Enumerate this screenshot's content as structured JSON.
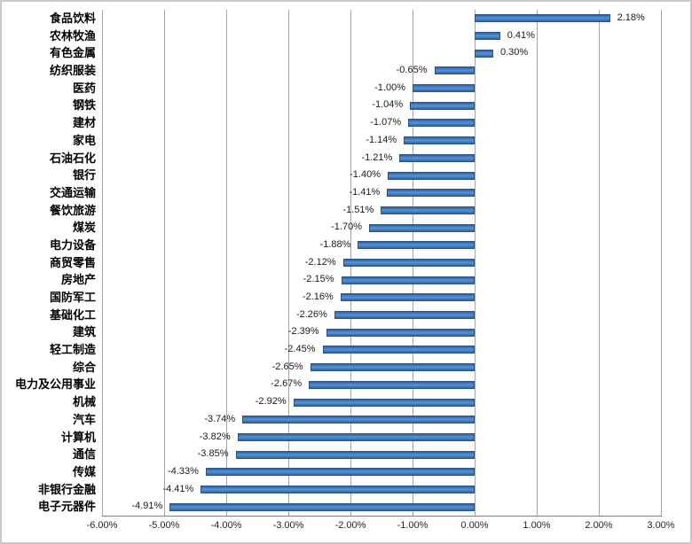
{
  "chart_data": {
    "type": "bar",
    "orientation": "horizontal",
    "title": "",
    "xlabel": "",
    "ylabel": "",
    "xlim": [
      -6,
      3
    ],
    "grid": "vertical",
    "legend": "none",
    "categories": [
      "食品饮料",
      "农林牧渔",
      "有色金属",
      "纺织服装",
      "医药",
      "钢铁",
      "建材",
      "家电",
      "石油石化",
      "银行",
      "交通运输",
      "餐饮旅游",
      "煤炭",
      "电力设备",
      "商贸零售",
      "房地产",
      "国防军工",
      "基础化工",
      "建筑",
      "轻工制造",
      "综合",
      "电力及公用事业",
      "机械",
      "汽车",
      "计算机",
      "通信",
      "传媒",
      "非银行金融",
      "电子元器件"
    ],
    "values": [
      2.18,
      0.41,
      0.3,
      -0.65,
      -1.0,
      -1.04,
      -1.07,
      -1.14,
      -1.21,
      -1.4,
      -1.41,
      -1.51,
      -1.7,
      -1.88,
      -2.12,
      -2.15,
      -2.16,
      -2.26,
      -2.39,
      -2.45,
      -2.65,
      -2.67,
      -2.92,
      -3.74,
      -3.82,
      -3.85,
      -4.33,
      -4.41,
      -4.91
    ],
    "value_labels": [
      "2.18%",
      "0.41%",
      "0.30%",
      "-0.65%",
      "-1.00%",
      "-1.04%",
      "-1.07%",
      "-1.14%",
      "-1.21%",
      "-1.40%",
      "-1.41%",
      "-1.51%",
      "-1.70%",
      "-1.88%",
      "-2.12%",
      "-2.15%",
      "-2.16%",
      "-2.26%",
      "-2.39%",
      "-2.45%",
      "-2.65%",
      "-2.67%",
      "-2.92%",
      "-3.74%",
      "-3.82%",
      "-3.85%",
      "-4.33%",
      "-4.41%",
      "-4.91%"
    ],
    "x_tick_values": [
      -6,
      -5,
      -4,
      -3,
      -2,
      -1,
      0,
      1,
      2,
      3
    ],
    "x_tick_labels": [
      "-6.00%",
      "-5.00%",
      "-4.00%",
      "-3.00%",
      "-2.00%",
      "-1.00%",
      "0.00%",
      "1.00%",
      "2.00%",
      "3.00%"
    ]
  },
  "colors": {
    "bar_fill": "#4c84c4",
    "bar_border": "#2a5488",
    "gridline": "#a6a6a6",
    "axis_line": "#7f7f7f",
    "chart_border": "#c9c9c9",
    "background": "#ffffff"
  }
}
